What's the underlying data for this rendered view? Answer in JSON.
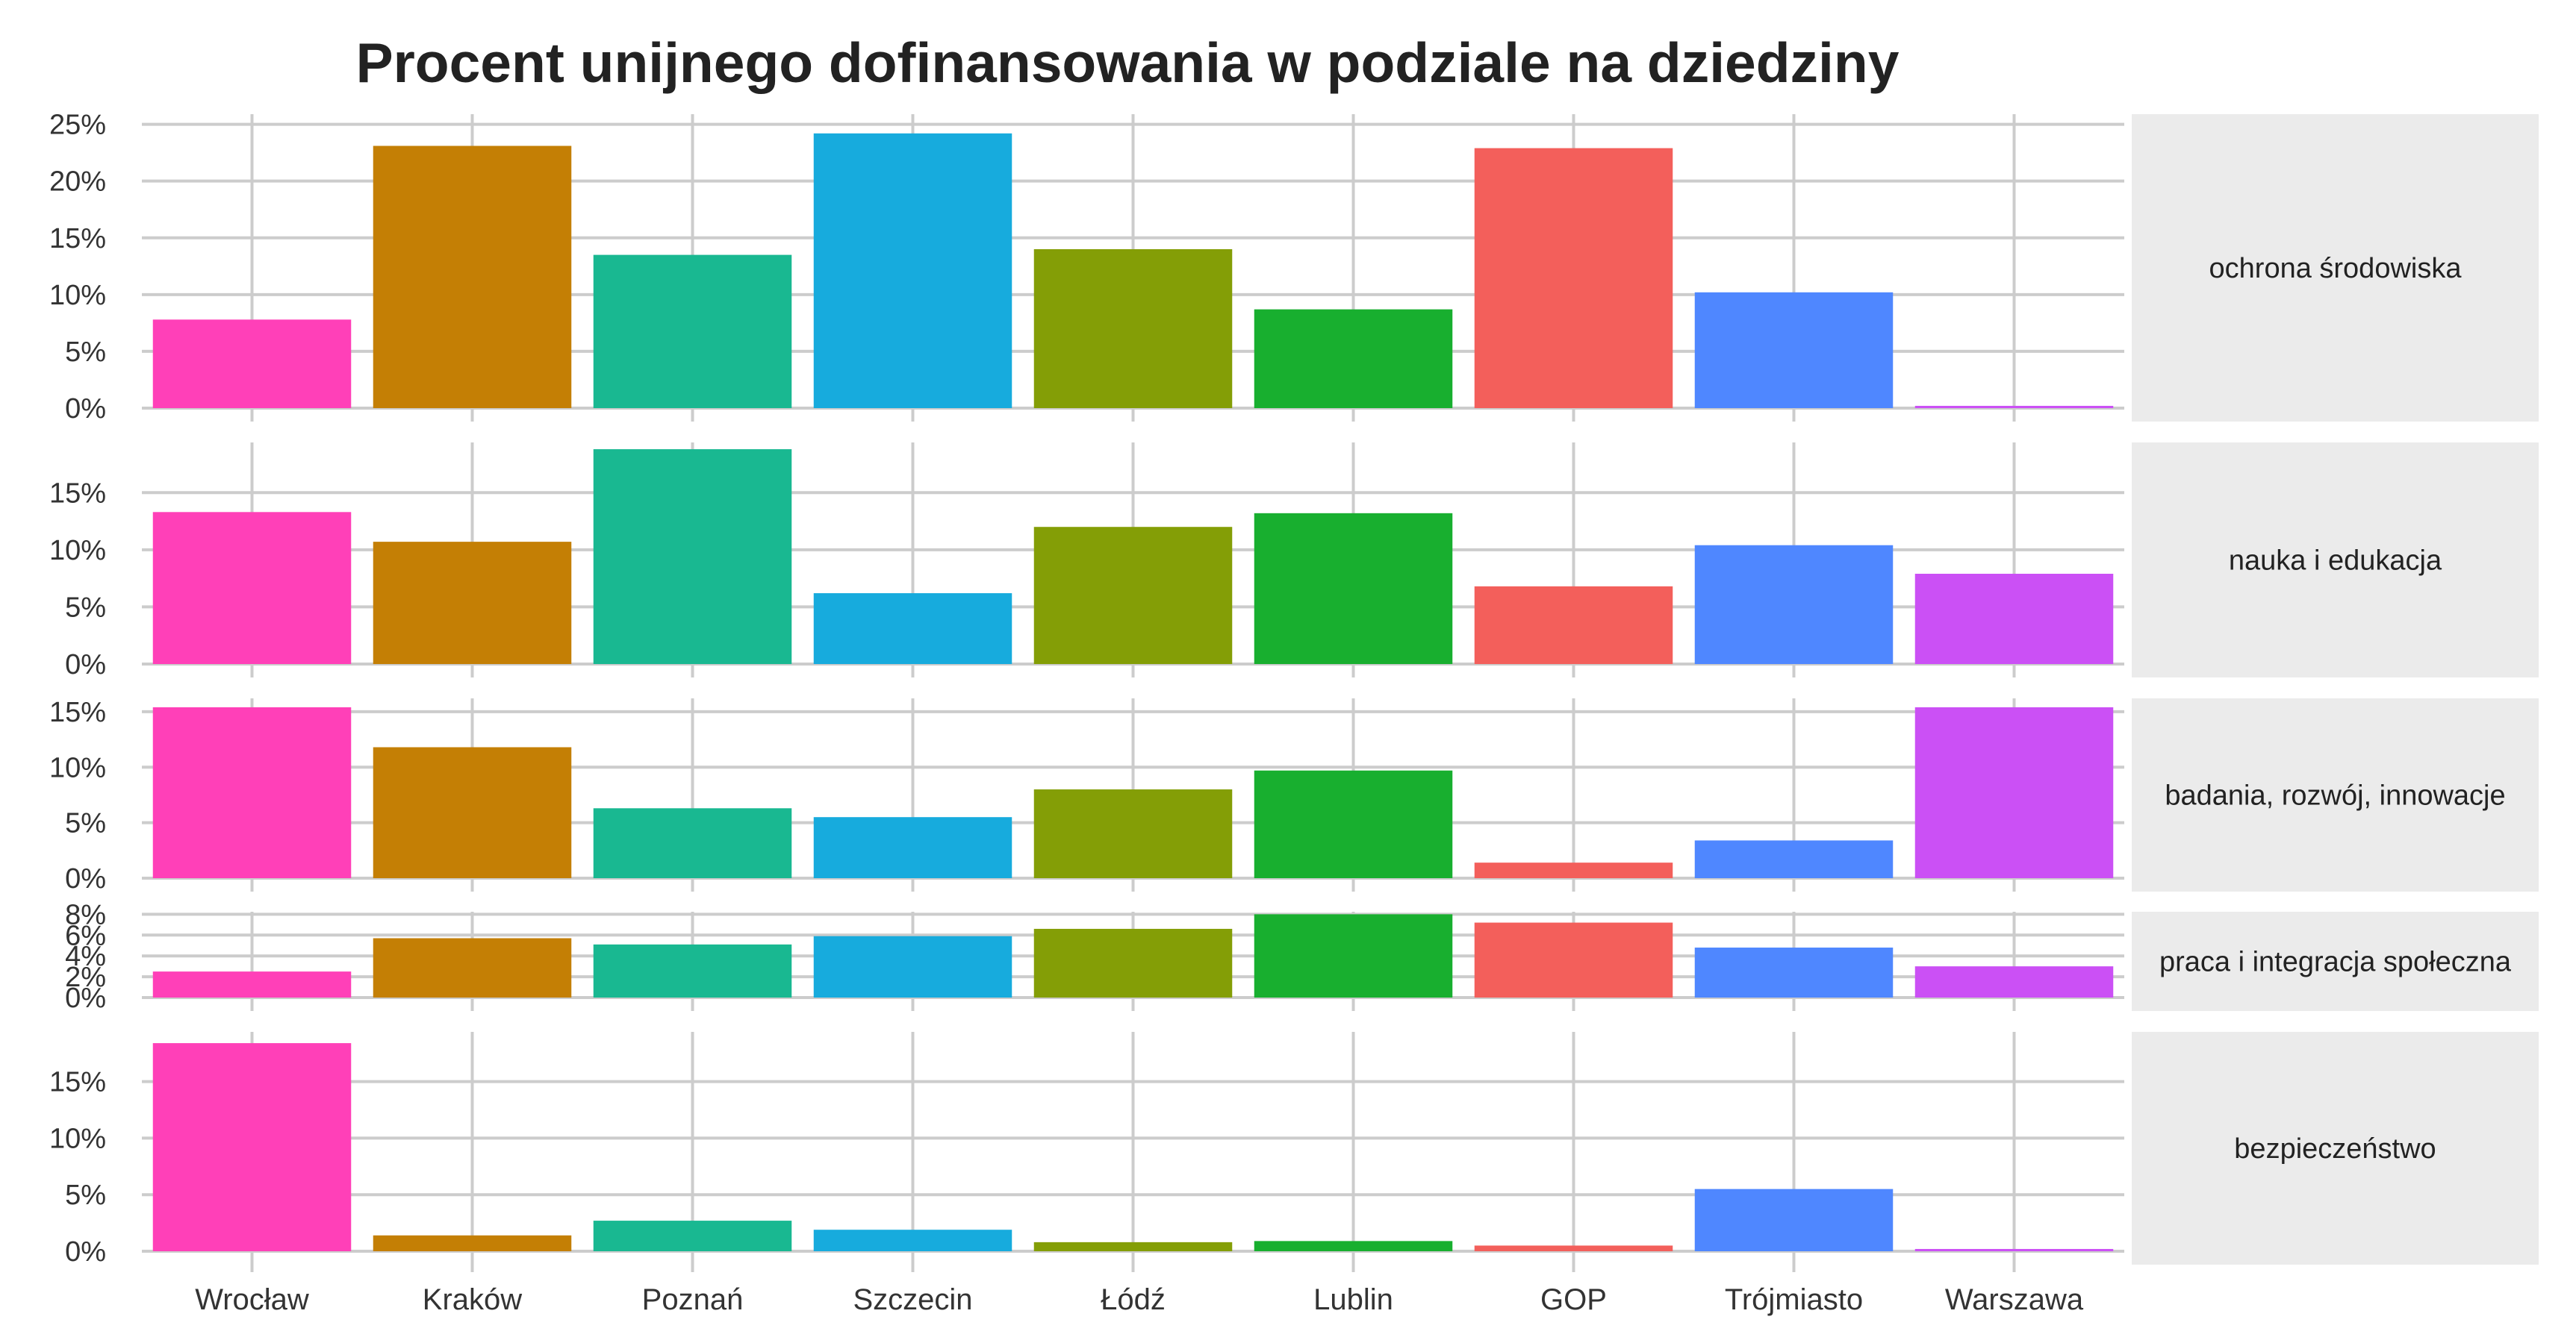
{
  "chart_data": {
    "type": "bar",
    "title": "Procent unijnego dofinansowania w podziale na dziedziny",
    "xlabel": "",
    "ylabel": "",
    "categories": [
      "Wrocław",
      "Kraków",
      "Poznań",
      "Szczecin",
      "Łódź",
      "Lublin",
      "GOP",
      "Trójmiasto",
      "Warszawa"
    ],
    "colors": [
      "#FF40B8",
      "#C47F05",
      "#19B891",
      "#17ABDD",
      "#849E06",
      "#18AF2F",
      "#F35F5B",
      "#4F87FF",
      "#CB50F5"
    ],
    "grid": true,
    "panel_background": "#ffffff",
    "strip_background": "#ebebeb",
    "facets": [
      {
        "label": "ochrona środowiska",
        "ylim": [
          0,
          25.5
        ],
        "yticks": [
          0,
          5,
          10,
          15,
          20,
          25
        ],
        "ytick_labels": [
          "0%",
          "5%",
          "10%",
          "15%",
          "20%",
          "25%"
        ],
        "values": [
          7.8,
          23.1,
          13.5,
          24.2,
          14.0,
          8.7,
          22.9,
          10.2,
          0.2
        ]
      },
      {
        "label": "nauka i edukacja",
        "ylim": [
          0,
          19
        ],
        "yticks": [
          0,
          5,
          10,
          15
        ],
        "ytick_labels": [
          "0%",
          "5%",
          "10%",
          "15%"
        ],
        "values": [
          13.3,
          10.7,
          18.8,
          6.2,
          12.0,
          13.2,
          6.8,
          10.4,
          7.9
        ]
      },
      {
        "label": "badania, rozwój, innowacje",
        "ylim": [
          0,
          15.8
        ],
        "yticks": [
          0,
          5,
          10,
          15
        ],
        "ytick_labels": [
          "0%",
          "5%",
          "10%",
          "15%"
        ],
        "values": [
          15.4,
          11.8,
          6.3,
          5.5,
          8.0,
          9.7,
          1.4,
          3.4,
          15.4
        ]
      },
      {
        "label": "praca i integracja społeczna",
        "ylim": [
          0,
          8.1
        ],
        "yticks": [
          0,
          2,
          4,
          6,
          8
        ],
        "ytick_labels": [
          "0%",
          "2%",
          "4%",
          "6%",
          "8%"
        ],
        "values": [
          2.5,
          5.7,
          5.1,
          5.9,
          6.6,
          8.0,
          7.2,
          4.8,
          3.0
        ]
      },
      {
        "label": "bezpieczeństwo",
        "ylim": [
          0,
          19
        ],
        "yticks": [
          0,
          5,
          10,
          15
        ],
        "ytick_labels": [
          "0%",
          "5%",
          "10%",
          "15%"
        ],
        "values": [
          18.4,
          1.4,
          2.7,
          1.9,
          0.8,
          0.9,
          0.5,
          5.5,
          0.2
        ]
      }
    ]
  }
}
